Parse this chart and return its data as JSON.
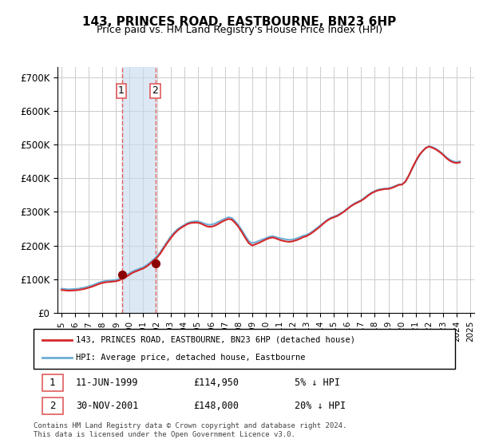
{
  "title": "143, PRINCES ROAD, EASTBOURNE, BN23 6HP",
  "subtitle": "Price paid vs. HM Land Registry's House Price Index (HPI)",
  "ylabel_ticks": [
    "£0",
    "£100K",
    "£200K",
    "£300K",
    "£400K",
    "£500K",
    "£600K",
    "£700K"
  ],
  "ytick_values": [
    0,
    100000,
    200000,
    300000,
    400000,
    500000,
    600000,
    700000
  ],
  "ylim": [
    0,
    730000
  ],
  "legend_line1": "143, PRINCES ROAD, EASTBOURNE, BN23 6HP (detached house)",
  "legend_line2": "HPI: Average price, detached house, Eastbourne",
  "transaction1_label": "1",
  "transaction1_date": "11-JUN-1999",
  "transaction1_price": "£114,950",
  "transaction1_hpi": "5% ↓ HPI",
  "transaction2_label": "2",
  "transaction2_date": "30-NOV-2001",
  "transaction2_price": "£148,000",
  "transaction2_hpi": "20% ↓ HPI",
  "footnote": "Contains HM Land Registry data © Crown copyright and database right 2024.\nThis data is licensed under the Open Government Licence v3.0.",
  "hpi_color": "#6baed6",
  "price_color": "#d62728",
  "transaction_marker_color": "#8B0000",
  "shaded_color": "#c6dbef",
  "vline_color": "#e05c5c",
  "background_color": "#ffffff",
  "grid_color": "#cccccc",
  "hpi_years": [
    1995.0,
    1995.25,
    1995.5,
    1995.75,
    1996.0,
    1996.25,
    1996.5,
    1996.75,
    1997.0,
    1997.25,
    1997.5,
    1997.75,
    1998.0,
    1998.25,
    1998.5,
    1998.75,
    1999.0,
    1999.25,
    1999.5,
    1999.75,
    2000.0,
    2000.25,
    2000.5,
    2000.75,
    2001.0,
    2001.25,
    2001.5,
    2001.75,
    2002.0,
    2002.25,
    2002.5,
    2002.75,
    2003.0,
    2003.25,
    2003.5,
    2003.75,
    2004.0,
    2004.25,
    2004.5,
    2004.75,
    2005.0,
    2005.25,
    2005.5,
    2005.75,
    2006.0,
    2006.25,
    2006.5,
    2006.75,
    2007.0,
    2007.25,
    2007.5,
    2007.75,
    2008.0,
    2008.25,
    2008.5,
    2008.75,
    2009.0,
    2009.25,
    2009.5,
    2009.75,
    2010.0,
    2010.25,
    2010.5,
    2010.75,
    2011.0,
    2011.25,
    2011.5,
    2011.75,
    2012.0,
    2012.25,
    2012.5,
    2012.75,
    2013.0,
    2013.25,
    2013.5,
    2013.75,
    2014.0,
    2014.25,
    2014.5,
    2014.75,
    2015.0,
    2015.25,
    2015.5,
    2015.75,
    2016.0,
    2016.25,
    2016.5,
    2016.75,
    2017.0,
    2017.25,
    2017.5,
    2017.75,
    2018.0,
    2018.25,
    2018.5,
    2018.75,
    2019.0,
    2019.25,
    2019.5,
    2019.75,
    2020.0,
    2020.25,
    2020.5,
    2020.75,
    2021.0,
    2021.25,
    2021.5,
    2021.75,
    2022.0,
    2022.25,
    2022.5,
    2022.75,
    2023.0,
    2023.25,
    2023.5,
    2023.75,
    2024.0,
    2024.25
  ],
  "hpi_values": [
    72000,
    71000,
    70000,
    70500,
    71000,
    72000,
    74000,
    76000,
    79000,
    82000,
    86000,
    90000,
    93000,
    95000,
    96000,
    97000,
    98000,
    101000,
    106000,
    112000,
    118000,
    124000,
    128000,
    132000,
    136000,
    142000,
    150000,
    158000,
    168000,
    181000,
    196000,
    211000,
    226000,
    238000,
    248000,
    255000,
    261000,
    267000,
    270000,
    272000,
    272000,
    269000,
    265000,
    262000,
    262000,
    265000,
    270000,
    275000,
    280000,
    284000,
    282000,
    272000,
    260000,
    245000,
    228000,
    213000,
    207000,
    210000,
    214000,
    218000,
    222000,
    226000,
    228000,
    225000,
    222000,
    220000,
    218000,
    217000,
    218000,
    221000,
    225000,
    229000,
    232000,
    237000,
    244000,
    252000,
    260000,
    268000,
    276000,
    282000,
    286000,
    290000,
    296000,
    302000,
    310000,
    318000,
    325000,
    330000,
    335000,
    342000,
    350000,
    357000,
    362000,
    366000,
    368000,
    369000,
    370000,
    373000,
    377000,
    381000,
    382000,
    390000,
    408000,
    428000,
    448000,
    466000,
    480000,
    490000,
    495000,
    492000,
    487000,
    480000,
    472000,
    462000,
    455000,
    450000,
    448000,
    450000
  ],
  "price_years": [
    1995.0,
    1995.25,
    1995.5,
    1995.75,
    1996.0,
    1996.25,
    1996.5,
    1996.75,
    1997.0,
    1997.25,
    1997.5,
    1997.75,
    1998.0,
    1998.25,
    1998.5,
    1998.75,
    1999.0,
    1999.25,
    1999.5,
    1999.75,
    2000.0,
    2000.25,
    2000.5,
    2000.75,
    2001.0,
    2001.25,
    2001.5,
    2001.75,
    2002.0,
    2002.25,
    2002.5,
    2002.75,
    2003.0,
    2003.25,
    2003.5,
    2003.75,
    2004.0,
    2004.25,
    2004.5,
    2004.75,
    2005.0,
    2005.25,
    2005.5,
    2005.75,
    2006.0,
    2006.25,
    2006.5,
    2006.75,
    2007.0,
    2007.25,
    2007.5,
    2007.75,
    2008.0,
    2008.25,
    2008.5,
    2008.75,
    2009.0,
    2009.25,
    2009.5,
    2009.75,
    2010.0,
    2010.25,
    2010.5,
    2010.75,
    2011.0,
    2011.25,
    2011.5,
    2011.75,
    2012.0,
    2012.25,
    2012.5,
    2012.75,
    2013.0,
    2013.25,
    2013.5,
    2013.75,
    2014.0,
    2014.25,
    2014.5,
    2014.75,
    2015.0,
    2015.25,
    2015.5,
    2015.75,
    2016.0,
    2016.25,
    2016.5,
    2016.75,
    2017.0,
    2017.25,
    2017.5,
    2017.75,
    2018.0,
    2018.25,
    2018.5,
    2018.75,
    2019.0,
    2019.25,
    2019.5,
    2019.75,
    2020.0,
    2020.25,
    2020.5,
    2020.75,
    2021.0,
    2021.25,
    2021.5,
    2021.75,
    2022.0,
    2022.25,
    2022.5,
    2022.75,
    2023.0,
    2023.25,
    2023.5,
    2023.75,
    2024.0,
    2024.25
  ],
  "price_values": [
    68000,
    67000,
    66000,
    66500,
    67000,
    68000,
    70000,
    72000,
    75000,
    78000,
    82000,
    86000,
    89000,
    91000,
    92000,
    93000,
    94000,
    97000,
    102000,
    107000,
    114000,
    120000,
    124000,
    128000,
    132000,
    138000,
    146000,
    155000,
    164000,
    176000,
    192000,
    207000,
    221000,
    234000,
    244000,
    252000,
    258000,
    264000,
    267000,
    268000,
    268000,
    265000,
    260000,
    256000,
    256000,
    259000,
    264000,
    270000,
    275000,
    279000,
    277000,
    267000,
    255000,
    239000,
    222000,
    207000,
    200000,
    204000,
    208000,
    213000,
    218000,
    222000,
    224000,
    221000,
    217000,
    214000,
    212000,
    211000,
    213000,
    216000,
    220000,
    225000,
    228000,
    234000,
    241000,
    249000,
    257000,
    266000,
    274000,
    280000,
    284000,
    288000,
    294000,
    301000,
    309000,
    317000,
    323000,
    328000,
    333000,
    340000,
    348000,
    355000,
    360000,
    364000,
    366000,
    368000,
    368000,
    371000,
    375000,
    380000,
    381000,
    390000,
    408000,
    430000,
    450000,
    468000,
    480000,
    490000,
    494000,
    490000,
    485000,
    478000,
    470000,
    460000,
    452000,
    447000,
    445000,
    447000
  ],
  "transaction1_x": 1999.44,
  "transaction1_y": 114950,
  "transaction2_x": 2001.92,
  "transaction2_y": 148000,
  "xtick_years": [
    1995,
    1996,
    1997,
    1998,
    1999,
    2000,
    2001,
    2002,
    2003,
    2004,
    2005,
    2006,
    2007,
    2008,
    2009,
    2010,
    2011,
    2012,
    2013,
    2014,
    2015,
    2016,
    2017,
    2018,
    2019,
    2020,
    2021,
    2022,
    2023,
    2024,
    2025
  ]
}
